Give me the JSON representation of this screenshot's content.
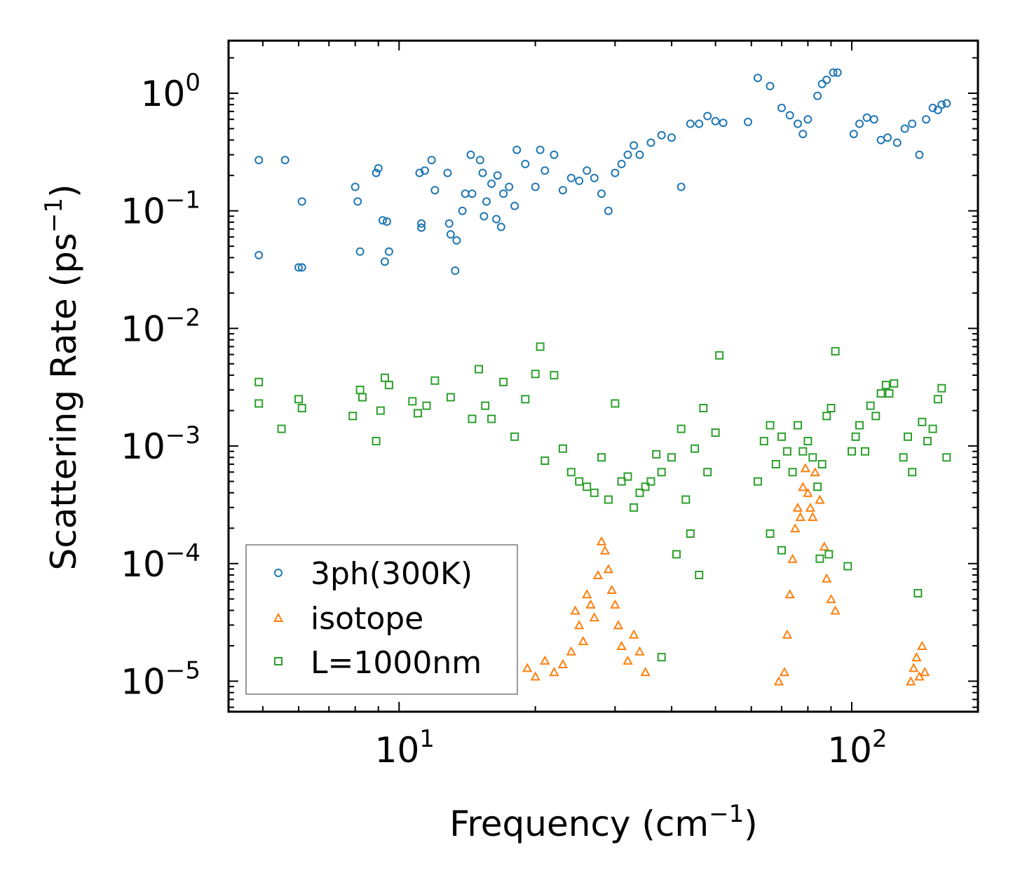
{
  "chart_data": {
    "type": "scatter",
    "x_scale": "log",
    "y_scale": "log",
    "xlim": [
      4.2,
      190
    ],
    "ylim": [
      5.5e-06,
      2.8
    ],
    "xlabel": "Frequency (cm⁻¹)",
    "ylabel": "Scattering Rate (ps⁻¹)",
    "xlabel_parts": {
      "text": "Frequency (cm",
      "exp": "−1",
      "close": ")"
    },
    "ylabel_parts": {
      "text": "Scattering Rate (ps",
      "exp": "−1",
      "close": ")"
    },
    "x_ticks": [
      {
        "value": 10,
        "base": "10",
        "exp": "1"
      },
      {
        "value": 100,
        "base": "10",
        "exp": "2"
      }
    ],
    "y_ticks": [
      {
        "value": 1,
        "base": "10",
        "exp": "0"
      },
      {
        "value": 0.1,
        "base": "10",
        "exp": "−1"
      },
      {
        "value": 0.01,
        "base": "10",
        "exp": "−2"
      },
      {
        "value": 0.001,
        "base": "10",
        "exp": "−3"
      },
      {
        "value": 0.0001,
        "base": "10",
        "exp": "−4"
      },
      {
        "value": 1e-05,
        "base": "10",
        "exp": "−5"
      }
    ],
    "legend_position": "lower-left",
    "series": [
      {
        "name": "3ph(300K)",
        "marker": "circle",
        "color": "#1f77b4",
        "points": [
          [
            4.9,
            0.27
          ],
          [
            4.9,
            0.042
          ],
          [
            5.6,
            0.27
          ],
          [
            6.0,
            0.033
          ],
          [
            6.1,
            0.12
          ],
          [
            6.1,
            0.033
          ],
          [
            8.0,
            0.16
          ],
          [
            8.1,
            0.12
          ],
          [
            8.2,
            0.045
          ],
          [
            8.9,
            0.21
          ],
          [
            9.0,
            0.23
          ],
          [
            9.2,
            0.083
          ],
          [
            9.3,
            0.037
          ],
          [
            9.4,
            0.081
          ],
          [
            9.5,
            0.045
          ],
          [
            11.1,
            0.21
          ],
          [
            11.2,
            0.078
          ],
          [
            11.2,
            0.072
          ],
          [
            11.4,
            0.22
          ],
          [
            11.8,
            0.27
          ],
          [
            12.0,
            0.15
          ],
          [
            12.8,
            0.21
          ],
          [
            12.9,
            0.078
          ],
          [
            13.0,
            0.063
          ],
          [
            13.4,
            0.056
          ],
          [
            13.3,
            0.031
          ],
          [
            13.8,
            0.1
          ],
          [
            14.0,
            0.14
          ],
          [
            14.4,
            0.3
          ],
          [
            14.5,
            0.14
          ],
          [
            15.1,
            0.27
          ],
          [
            15.3,
            0.21
          ],
          [
            15.4,
            0.09
          ],
          [
            15.6,
            0.12
          ],
          [
            16.0,
            0.17
          ],
          [
            16.4,
            0.085
          ],
          [
            16.5,
            0.2
          ],
          [
            16.8,
            0.073
          ],
          [
            17.0,
            0.14
          ],
          [
            17.5,
            0.16
          ],
          [
            18.0,
            0.11
          ],
          [
            18.2,
            0.33
          ],
          [
            19.0,
            0.25
          ],
          [
            20.0,
            0.16
          ],
          [
            20.5,
            0.33
          ],
          [
            21.0,
            0.22
          ],
          [
            22.0,
            0.3
          ],
          [
            23.0,
            0.15
          ],
          [
            24.0,
            0.19
          ],
          [
            25.0,
            0.18
          ],
          [
            26.0,
            0.22
          ],
          [
            27.0,
            0.19
          ],
          [
            28.0,
            0.14
          ],
          [
            29.0,
            0.1
          ],
          [
            30.0,
            0.21
          ],
          [
            31.0,
            0.25
          ],
          [
            32.0,
            0.3
          ],
          [
            33.0,
            0.36
          ],
          [
            34.0,
            0.3
          ],
          [
            36.0,
            0.38
          ],
          [
            38.0,
            0.44
          ],
          [
            40.0,
            0.42
          ],
          [
            42.0,
            0.16
          ],
          [
            44.0,
            0.55
          ],
          [
            46.0,
            0.55
          ],
          [
            48.0,
            0.64
          ],
          [
            50.0,
            0.58
          ],
          [
            52.0,
            0.56
          ],
          [
            59.0,
            0.57
          ],
          [
            62.0,
            1.35
          ],
          [
            66.0,
            1.15
          ],
          [
            70.0,
            0.75
          ],
          [
            73.0,
            0.65
          ],
          [
            76.0,
            0.55
          ],
          [
            78.0,
            0.45
          ],
          [
            80.0,
            0.6
          ],
          [
            84.0,
            0.95
          ],
          [
            86.0,
            1.2
          ],
          [
            88.0,
            1.3
          ],
          [
            91.0,
            1.5
          ],
          [
            93.0,
            1.5
          ],
          [
            101.0,
            0.45
          ],
          [
            104.0,
            0.55
          ],
          [
            108.0,
            0.62
          ],
          [
            112.0,
            0.6
          ],
          [
            116.0,
            0.4
          ],
          [
            120.0,
            0.42
          ],
          [
            126.0,
            0.38
          ],
          [
            131.0,
            0.5
          ],
          [
            136.0,
            0.55
          ],
          [
            141.0,
            0.3
          ],
          [
            146.0,
            0.6
          ],
          [
            151.0,
            0.75
          ],
          [
            155.0,
            0.72
          ],
          [
            158.0,
            0.8
          ],
          [
            162.0,
            0.82
          ]
        ]
      },
      {
        "name": "isotope",
        "marker": "triangle",
        "color": "#ff7f0e",
        "points": [
          [
            19.2,
            1.3e-05
          ],
          [
            20.0,
            1.1e-05
          ],
          [
            21.0,
            1.5e-05
          ],
          [
            22.0,
            1.2e-05
          ],
          [
            23.0,
            1.4e-05
          ],
          [
            24.0,
            1.8e-05
          ],
          [
            24.5,
            4e-05
          ],
          [
            25.0,
            3e-05
          ],
          [
            25.5,
            2.2e-05
          ],
          [
            26.0,
            5.5e-05
          ],
          [
            26.5,
            4.5e-05
          ],
          [
            27.0,
            3.5e-05
          ],
          [
            27.5,
            8e-05
          ],
          [
            28.0,
            0.000155
          ],
          [
            28.5,
            0.00013
          ],
          [
            29.0,
            9e-05
          ],
          [
            29.5,
            6e-05
          ],
          [
            30.0,
            4.5e-05
          ],
          [
            30.5,
            3e-05
          ],
          [
            31.0,
            2e-05
          ],
          [
            32.0,
            1.5e-05
          ],
          [
            33.0,
            2.5e-05
          ],
          [
            34.0,
            1.8e-05
          ],
          [
            35.0,
            1.2e-05
          ],
          [
            69.0,
            1e-05
          ],
          [
            71.0,
            1.2e-05
          ],
          [
            72.0,
            2.5e-05
          ],
          [
            73.0,
            5.5e-05
          ],
          [
            74.0,
            0.00011
          ],
          [
            75.0,
            0.0002
          ],
          [
            76.0,
            0.0003
          ],
          [
            77.0,
            0.00025
          ],
          [
            78.0,
            0.00045
          ],
          [
            79.0,
            0.00065
          ],
          [
            80.0,
            0.0004
          ],
          [
            81.0,
            0.0003
          ],
          [
            82.0,
            0.00025
          ],
          [
            83.0,
            0.0006
          ],
          [
            85.0,
            0.00035
          ],
          [
            87.0,
            0.00014
          ],
          [
            88.0,
            7.5e-05
          ],
          [
            90.0,
            5e-05
          ],
          [
            92.0,
            4e-05
          ],
          [
            135.0,
            1e-05
          ],
          [
            137.0,
            1.3e-05
          ],
          [
            139.0,
            1.6e-05
          ],
          [
            141.0,
            1.1e-05
          ],
          [
            143.0,
            2e-05
          ],
          [
            145.0,
            1.2e-05
          ]
        ]
      },
      {
        "name": "L=1000nm",
        "marker": "square",
        "color": "#2ca02c",
        "points": [
          [
            4.9,
            0.0035
          ],
          [
            4.9,
            0.0023
          ],
          [
            5.5,
            0.0014
          ],
          [
            6.0,
            0.0025
          ],
          [
            6.1,
            0.0021
          ],
          [
            7.9,
            0.0018
          ],
          [
            8.2,
            0.003
          ],
          [
            8.3,
            0.0026
          ],
          [
            8.9,
            0.0011
          ],
          [
            9.1,
            0.002
          ],
          [
            9.3,
            0.0038
          ],
          [
            9.5,
            0.0033
          ],
          [
            10.7,
            0.0024
          ],
          [
            11.0,
            0.0019
          ],
          [
            11.5,
            0.0022
          ],
          [
            12.0,
            0.0036
          ],
          [
            13.0,
            0.0026
          ],
          [
            14.5,
            0.0017
          ],
          [
            15.0,
            0.0045
          ],
          [
            15.5,
            0.0022
          ],
          [
            16.0,
            0.0017
          ],
          [
            17.0,
            0.0035
          ],
          [
            18.0,
            0.0012
          ],
          [
            19.0,
            0.0025
          ],
          [
            20.0,
            0.0041
          ],
          [
            20.5,
            0.007
          ],
          [
            21.0,
            0.00075
          ],
          [
            22.0,
            0.004
          ],
          [
            23.0,
            0.00095
          ],
          [
            24.0,
            0.0006
          ],
          [
            25.0,
            0.0005
          ],
          [
            26.0,
            0.00045
          ],
          [
            27.0,
            0.0004
          ],
          [
            28.0,
            0.0008
          ],
          [
            29.0,
            0.00035
          ],
          [
            30.0,
            0.0023
          ],
          [
            31.0,
            0.0005
          ],
          [
            32.0,
            0.00055
          ],
          [
            33.0,
            0.0003
          ],
          [
            34.0,
            0.0004
          ],
          [
            35.0,
            0.00045
          ],
          [
            36.0,
            0.0005
          ],
          [
            37.0,
            0.00085
          ],
          [
            38.0,
            0.0006
          ],
          [
            40.0,
            0.0008
          ],
          [
            41.0,
            0.00012
          ],
          [
            42.0,
            0.0014
          ],
          [
            43.0,
            0.00035
          ],
          [
            44.0,
            0.00018
          ],
          [
            45.0,
            0.00095
          ],
          [
            46.0,
            8e-05
          ],
          [
            47.0,
            0.0021
          ],
          [
            48.0,
            0.0006
          ],
          [
            50.0,
            0.0013
          ],
          [
            51.0,
            0.0059
          ],
          [
            38.0,
            1.6e-05
          ],
          [
            62.0,
            0.0005
          ],
          [
            64.0,
            0.0011
          ],
          [
            66.0,
            0.0015
          ],
          [
            68.0,
            0.0007
          ],
          [
            70.0,
            0.0012
          ],
          [
            72.0,
            0.0009
          ],
          [
            74.0,
            0.0006
          ],
          [
            76.0,
            0.0015
          ],
          [
            78.0,
            0.0009
          ],
          [
            80.0,
            0.0011
          ],
          [
            82.0,
            0.0008
          ],
          [
            84.0,
            0.00045
          ],
          [
            86.0,
            0.0007
          ],
          [
            88.0,
            0.0018
          ],
          [
            90.0,
            0.0021
          ],
          [
            92.0,
            0.0064
          ],
          [
            100.0,
            0.0009
          ],
          [
            102.0,
            0.0012
          ],
          [
            104.0,
            0.0015
          ],
          [
            107.0,
            0.0009
          ],
          [
            110.0,
            0.0022
          ],
          [
            113.0,
            0.0018
          ],
          [
            116.0,
            0.0028
          ],
          [
            119.0,
            0.0033
          ],
          [
            121.0,
            0.0028
          ],
          [
            124.0,
            0.0034
          ],
          [
            130.0,
            0.0008
          ],
          [
            133.0,
            0.0012
          ],
          [
            136.0,
            0.0006
          ],
          [
            140.0,
            5.6e-05
          ],
          [
            143.0,
            0.0016
          ],
          [
            147.0,
            0.0011
          ],
          [
            151.0,
            0.0014
          ],
          [
            155.0,
            0.0025
          ],
          [
            158.0,
            0.0031
          ],
          [
            162.0,
            0.0008
          ],
          [
            98.0,
            9.5e-05
          ],
          [
            70.0,
            0.00013
          ],
          [
            66.0,
            0.00018
          ],
          [
            85.0,
            0.00011
          ],
          [
            89.0,
            0.00012
          ]
        ]
      }
    ]
  }
}
